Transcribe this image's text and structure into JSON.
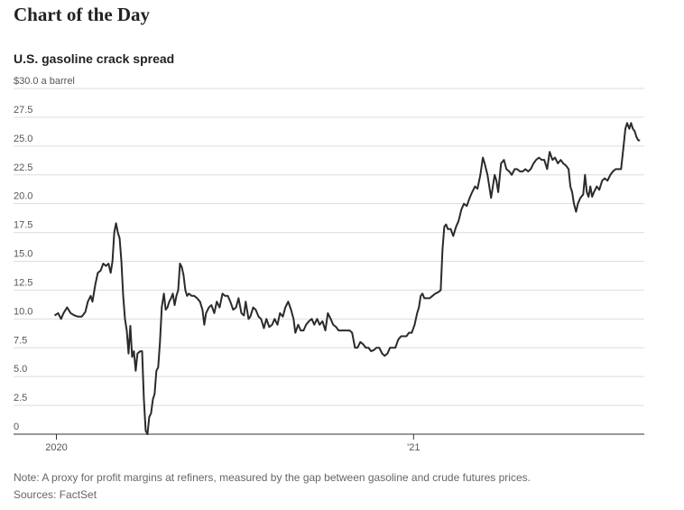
{
  "chart_data": {
    "type": "line",
    "title": "Chart of the Day",
    "subtitle": "U.S. gasoline crack spread",
    "note": "Note: A proxy for profit margins at refiners, measured by the gap between gasoline and crude futures prices.",
    "source": "Sources: FactSet",
    "color": "#2b2b2b",
    "grid": true,
    "xlim": [
      2019.88,
      2021.646
    ],
    "xticks": [
      2020,
      {
        "value": 2021,
        "label": "'21"
      }
    ],
    "ylim": [
      0,
      30
    ],
    "yticks": [
      0,
      2.5,
      {
        "value": 5,
        "label": "5.0"
      },
      7.5,
      {
        "value": 10,
        "label": "10.0"
      },
      12.5,
      {
        "value": 15,
        "label": "15.0"
      },
      17.5,
      {
        "value": 20,
        "label": "20.0"
      },
      22.5,
      {
        "value": 25,
        "label": "25.0"
      },
      27.5,
      {
        "value": 30,
        "label": "$30.0 a barrel"
      }
    ],
    "x": [
      2019.995,
      2020.005,
      2020.013,
      2020.02,
      2020.03,
      2020.04,
      2020.051,
      2020.061,
      2020.071,
      2020.081,
      2020.088,
      2020.096,
      2020.101,
      2020.109,
      2020.116,
      2020.124,
      2020.131,
      2020.139,
      2020.146,
      2020.152,
      2020.157,
      2020.162,
      2020.167,
      2020.172,
      2020.177,
      2020.182,
      2020.187,
      2020.192,
      2020.197,
      2020.202,
      2020.207,
      2020.212,
      2020.217,
      2020.222,
      2020.227,
      2020.235,
      2020.24,
      2020.245,
      2020.25,
      2020.255,
      2020.26,
      2020.265,
      2020.27,
      2020.275,
      2020.28,
      2020.285,
      2020.29,
      2020.295,
      2020.301,
      2020.306,
      2020.311,
      2020.316,
      2020.321,
      2020.326,
      2020.331,
      2020.336,
      2020.341,
      2020.346,
      2020.351,
      2020.356,
      2020.361,
      2020.366,
      2020.371,
      2020.379,
      2020.386,
      2020.394,
      2020.402,
      2020.409,
      2020.414,
      2020.419,
      2020.427,
      2020.434,
      2020.442,
      2020.449,
      2020.457,
      2020.465,
      2020.472,
      2020.48,
      2020.487,
      2020.495,
      2020.503,
      2020.51,
      2020.518,
      2020.525,
      2020.53,
      2020.538,
      2020.543,
      2020.551,
      2020.558,
      2020.566,
      2020.573,
      2020.581,
      2020.588,
      2020.596,
      2020.604,
      2020.611,
      2020.619,
      2020.626,
      2020.634,
      2020.641,
      2020.649,
      2020.657,
      2020.664,
      2020.669,
      2020.677,
      2020.684,
      2020.692,
      2020.699,
      2020.707,
      2020.715,
      2020.722,
      2020.73,
      2020.737,
      2020.745,
      2020.753,
      2020.76,
      2020.768,
      2020.775,
      2020.783,
      2020.79,
      2020.798,
      2020.806,
      2020.813,
      2020.821,
      2020.828,
      2020.836,
      2020.843,
      2020.851,
      2020.859,
      2020.866,
      2020.874,
      2020.881,
      2020.889,
      2020.896,
      2020.904,
      2020.912,
      2020.919,
      2020.927,
      2020.934,
      2020.942,
      2020.949,
      2020.957,
      2020.965,
      2020.972,
      2020.98,
      2020.987,
      2020.995,
      2021.003,
      2021.01,
      2021.015,
      2021.02,
      2021.025,
      2021.03,
      2021.038,
      2021.045,
      2021.053,
      2021.061,
      2021.068,
      2021.076,
      2021.081,
      2021.086,
      2021.091,
      2021.096,
      2021.104,
      2021.111,
      2021.119,
      2021.126,
      2021.134,
      2021.141,
      2021.149,
      2021.157,
      2021.164,
      2021.172,
      2021.179,
      2021.187,
      2021.194,
      2021.199,
      2021.207,
      2021.212,
      2021.217,
      2021.222,
      2021.227,
      2021.232,
      2021.237,
      2021.245,
      2021.253,
      2021.26,
      2021.268,
      2021.275,
      2021.283,
      2021.29,
      2021.298,
      2021.306,
      2021.313,
      2021.321,
      2021.328,
      2021.336,
      2021.343,
      2021.351,
      2021.359,
      2021.366,
      2021.374,
      2021.381,
      2021.389,
      2021.396,
      2021.404,
      2021.412,
      2021.419,
      2021.427,
      2021.434,
      2021.439,
      2021.444,
      2021.449,
      2021.455,
      2021.46,
      2021.467,
      2021.475,
      2021.48,
      2021.485,
      2021.49,
      2021.495,
      2021.5,
      2021.505,
      2021.513,
      2021.52,
      2021.528,
      2021.535,
      2021.543,
      2021.551,
      2021.558,
      2021.566,
      2021.573,
      2021.581,
      2021.588,
      2021.593,
      2021.598,
      2021.604,
      2021.609,
      2021.614,
      2021.619,
      2021.624,
      2021.629,
      2021.634
    ],
    "values": [
      10.3,
      10.5,
      10.0,
      10.5,
      11.0,
      10.5,
      10.3,
      10.2,
      10.2,
      10.6,
      11.5,
      12.0,
      11.5,
      13.0,
      14.0,
      14.2,
      14.8,
      14.6,
      14.8,
      14.0,
      15.0,
      17.5,
      18.3,
      17.5,
      17.0,
      15.0,
      12.0,
      10.0,
      9.0,
      7.0,
      9.4,
      6.7,
      7.2,
      5.5,
      7.0,
      7.2,
      7.2,
      3.0,
      0.3,
      0.0,
      1.5,
      1.8,
      3.0,
      3.5,
      5.5,
      5.8,
      8.0,
      11.0,
      12.2,
      10.8,
      11.0,
      11.5,
      11.8,
      12.2,
      11.2,
      12.0,
      12.5,
      14.8,
      14.5,
      13.8,
      12.5,
      12.0,
      12.2,
      12.0,
      12.0,
      11.8,
      11.5,
      10.8,
      9.5,
      10.5,
      11.0,
      11.2,
      10.5,
      11.5,
      11.0,
      12.2,
      12.0,
      12.0,
      11.5,
      10.8,
      11.0,
      11.8,
      10.5,
      10.3,
      11.5,
      10.0,
      10.2,
      11.0,
      10.8,
      10.2,
      10.0,
      9.2,
      10.0,
      9.3,
      9.5,
      10.0,
      9.5,
      10.5,
      10.2,
      11.0,
      11.5,
      10.8,
      10.0,
      8.8,
      9.5,
      9.0,
      9.0,
      9.5,
      9.8,
      10.0,
      9.5,
      10.0,
      9.5,
      9.8,
      9.0,
      10.5,
      10.0,
      9.5,
      9.3,
      9.0,
      9.0,
      9.0,
      9.0,
      9.0,
      8.8,
      7.5,
      7.5,
      8.0,
      7.8,
      7.5,
      7.5,
      7.2,
      7.3,
      7.5,
      7.5,
      7.0,
      6.8,
      7.0,
      7.5,
      7.5,
      7.5,
      8.2,
      8.5,
      8.5,
      8.5,
      8.8,
      8.8,
      9.5,
      10.5,
      11.0,
      12.0,
      12.2,
      11.8,
      11.8,
      11.8,
      12.0,
      12.2,
      12.3,
      12.5,
      16.0,
      18.0,
      18.2,
      17.8,
      17.8,
      17.2,
      18.0,
      18.5,
      19.5,
      20.0,
      19.8,
      20.5,
      21.0,
      21.5,
      21.3,
      22.5,
      24.0,
      23.5,
      22.5,
      21.5,
      20.5,
      21.5,
      22.5,
      22.0,
      21.0,
      23.5,
      23.8,
      23.0,
      22.8,
      22.5,
      23.0,
      23.0,
      22.8,
      22.8,
      23.0,
      22.8,
      23.0,
      23.5,
      23.8,
      24.0,
      23.8,
      23.8,
      23.0,
      24.5,
      23.8,
      24.0,
      23.5,
      23.8,
      23.5,
      23.3,
      23.0,
      21.5,
      21.0,
      20.0,
      19.3,
      20.0,
      20.5,
      20.8,
      22.5,
      21.0,
      20.6,
      21.5,
      20.6,
      21.0,
      21.5,
      21.2,
      22.0,
      22.2,
      22.0,
      22.5,
      22.8,
      23.0,
      23.0,
      23.0,
      25.0,
      26.5,
      27.0,
      26.5,
      27.0,
      26.5,
      26.3,
      25.8,
      25.5,
      25.5
    ]
  }
}
